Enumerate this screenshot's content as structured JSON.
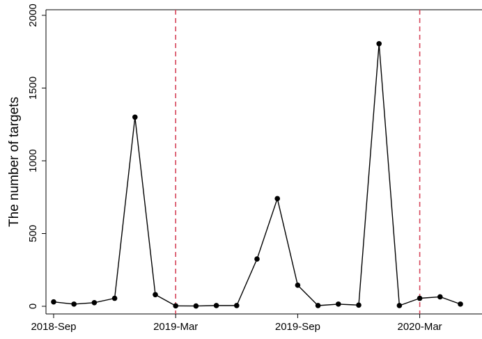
{
  "chart_data": {
    "type": "line",
    "title": "",
    "xlabel": "",
    "ylabel": "The number of targets",
    "ylim": [
      0,
      2000
    ],
    "xlim": [
      "2018-09",
      "2020-05"
    ],
    "y_ticks": [
      "0",
      "500",
      "1000",
      "1500",
      "2000"
    ],
    "x_ticks": [
      {
        "label": "2018-Sep",
        "date": "2018-09"
      },
      {
        "label": "2019-Mar",
        "date": "2019-03"
      },
      {
        "label": "2019-Sep",
        "date": "2019-09"
      },
      {
        "label": "2020-Mar",
        "date": "2020-03"
      }
    ],
    "x": [
      "2018-09",
      "2018-10",
      "2018-11",
      "2018-12",
      "2019-01",
      "2019-02",
      "2019-03",
      "2019-04",
      "2019-05",
      "2019-06",
      "2019-07",
      "2019-08",
      "2019-09",
      "2019-10",
      "2019-11",
      "2019-12",
      "2020-01",
      "2020-02",
      "2020-03",
      "2020-04",
      "2020-05"
    ],
    "values": [
      30,
      15,
      25,
      55,
      1300,
      80,
      3,
      2,
      5,
      5,
      325,
      740,
      145,
      5,
      15,
      8,
      1805,
      5,
      55,
      65,
      15
    ],
    "vlines": [
      "2019-03",
      "2020-03"
    ],
    "grid": false,
    "legend": "none",
    "colors": {
      "line": "#000000",
      "marker": "#000000",
      "vline": "#d6455a",
      "axis": "#000000"
    }
  }
}
